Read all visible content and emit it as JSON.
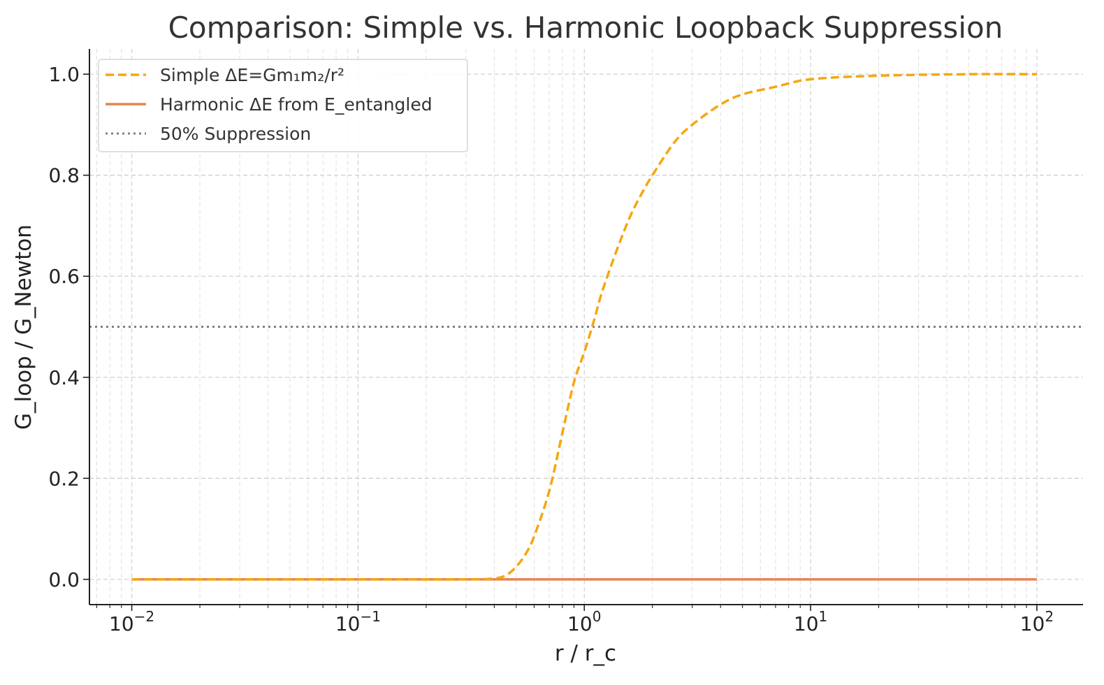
{
  "chart_data": {
    "type": "line",
    "title": "Comparison: Simple vs. Harmonic Loopback Suppression",
    "xlabel": "r / r_c",
    "ylabel": "G_loop / G_Newton",
    "xscale": "log",
    "xlim": [
      0.0065,
      160
    ],
    "ylim": [
      -0.05,
      1.05
    ],
    "grid": true,
    "legend_position": "top-left",
    "x_ticks": [
      {
        "value": 0.01,
        "base": "10",
        "exp": "−2"
      },
      {
        "value": 0.1,
        "base": "10",
        "exp": "−1"
      },
      {
        "value": 1,
        "base": "10",
        "exp": "0"
      },
      {
        "value": 10,
        "base": "10",
        "exp": "1"
      },
      {
        "value": 100,
        "base": "10",
        "exp": "2"
      }
    ],
    "y_ticks": [
      {
        "value": 0.0,
        "label": "0.0"
      },
      {
        "value": 0.2,
        "label": "0.2"
      },
      {
        "value": 0.4,
        "label": "0.4"
      },
      {
        "value": 0.6,
        "label": "0.6"
      },
      {
        "value": 0.8,
        "label": "0.8"
      },
      {
        "value": 1.0,
        "label": "1.0"
      }
    ],
    "series": [
      {
        "name": "Simple ΔE=Gm₁m₂/r²",
        "color": "#f5a70f",
        "style": "dashed",
        "x": [
          0.01,
          0.1,
          0.3,
          0.4,
          0.45,
          0.5,
          0.55,
          0.6,
          0.7,
          0.8,
          0.9,
          1.0,
          1.1,
          1.2,
          1.4,
          1.6,
          1.8,
          2.0,
          2.5,
          3.0,
          4.0,
          5.0,
          7.0,
          10.0,
          20.0,
          50.0,
          100.0
        ],
        "y": [
          0.0,
          0.0,
          0.0,
          0.002,
          0.008,
          0.025,
          0.05,
          0.085,
          0.175,
          0.29,
          0.39,
          0.45,
          0.51,
          0.57,
          0.655,
          0.72,
          0.765,
          0.8,
          0.865,
          0.9,
          0.94,
          0.96,
          0.975,
          0.99,
          0.997,
          1.0,
          1.0
        ]
      },
      {
        "name": "Harmonic ΔE from E_entangled",
        "color": "#e8834e",
        "style": "solid",
        "x": [
          0.01,
          100.0
        ],
        "y": [
          0.0,
          0.0
        ]
      },
      {
        "name": "50% Suppression",
        "color": "#808080",
        "style": "dotted",
        "y_constant": 0.5
      }
    ]
  }
}
